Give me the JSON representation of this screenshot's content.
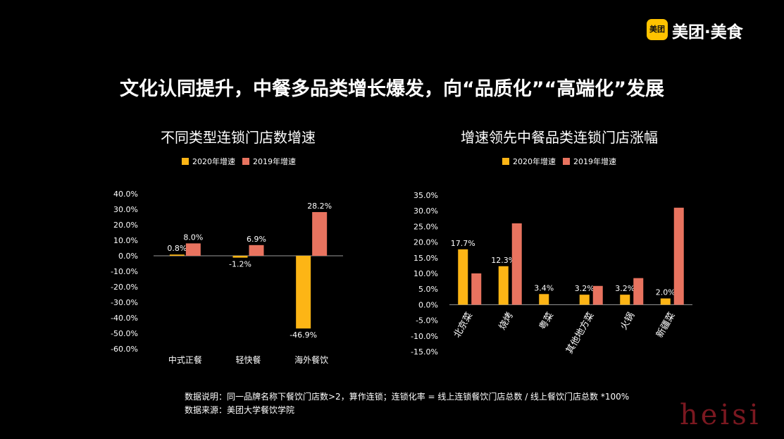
{
  "brand": {
    "icon_text": "美团",
    "name": "美团·美食",
    "color": "#ffc300"
  },
  "headline": "文化认同提升，中餐多品类增长爆发，向“品质化”“高端化”发展",
  "colors": {
    "series_2020": "#fdb515",
    "series_2019": "#e8735f",
    "axis": "#9a9a9a",
    "text": "#ffffff"
  },
  "chart_data": [
    {
      "type": "bar",
      "title": "不同类型连锁门店数增速",
      "categories": [
        "中式正餐",
        "轻快餐",
        "海外餐饮"
      ],
      "series": [
        {
          "name": "2020年增速",
          "values": [
            0.8,
            -1.2,
            -46.9
          ],
          "labels": [
            "0.8%",
            "-1.2%",
            "-46.9%"
          ]
        },
        {
          "name": "2019年增速",
          "values": [
            8.0,
            6.9,
            28.2
          ],
          "labels": [
            "8.0%",
            "6.9%",
            "28.2%"
          ]
        }
      ],
      "ylim": [
        -60,
        40
      ],
      "yticks": [
        "40.0%",
        "30.0%",
        "20.0%",
        "10.0%",
        "0.0%",
        "-10.0%",
        "-20.0%",
        "-30.0%",
        "-40.0%",
        "-50.0%",
        "-60.0%"
      ],
      "xlabel": "",
      "ylabel": "",
      "grid": false,
      "legend": "top-center"
    },
    {
      "type": "bar",
      "title": "增速领先中餐品类连锁门店涨幅",
      "categories": [
        "北京菜",
        "烧烤",
        "粤菜",
        "其他地方菜",
        "火锅",
        "新疆菜"
      ],
      "series": [
        {
          "name": "2020年增速",
          "values": [
            17.7,
            12.3,
            3.4,
            3.2,
            3.2,
            2.0
          ],
          "labels": [
            "17.7%",
            "12.3%",
            "3.4%",
            "3.2%",
            "3.2%",
            "2.0%"
          ]
        },
        {
          "name": "2019年增速",
          "values": [
            10.0,
            26.0,
            0.0,
            6.0,
            8.5,
            31.0
          ],
          "labels": []
        }
      ],
      "ylim": [
        -15,
        35
      ],
      "yticks": [
        "35.0%",
        "30.0%",
        "25.0%",
        "20.0%",
        "15.0%",
        "10.0%",
        "5.0%",
        "0.0%",
        "-5.0%",
        "-10.0%",
        "-15.0%"
      ],
      "xlabel": "",
      "ylabel": "",
      "grid": false,
      "legend": "top-center"
    }
  ],
  "notes": {
    "line1": "数据说明：同一品牌名称下餐饮门店数>2，算作连锁；连锁化率 = 线上连锁餐饮门店总数 / 线上餐饮门店总数 *100%",
    "line2": "数据来源：美团大学餐饮学院"
  },
  "watermark": "heisi"
}
